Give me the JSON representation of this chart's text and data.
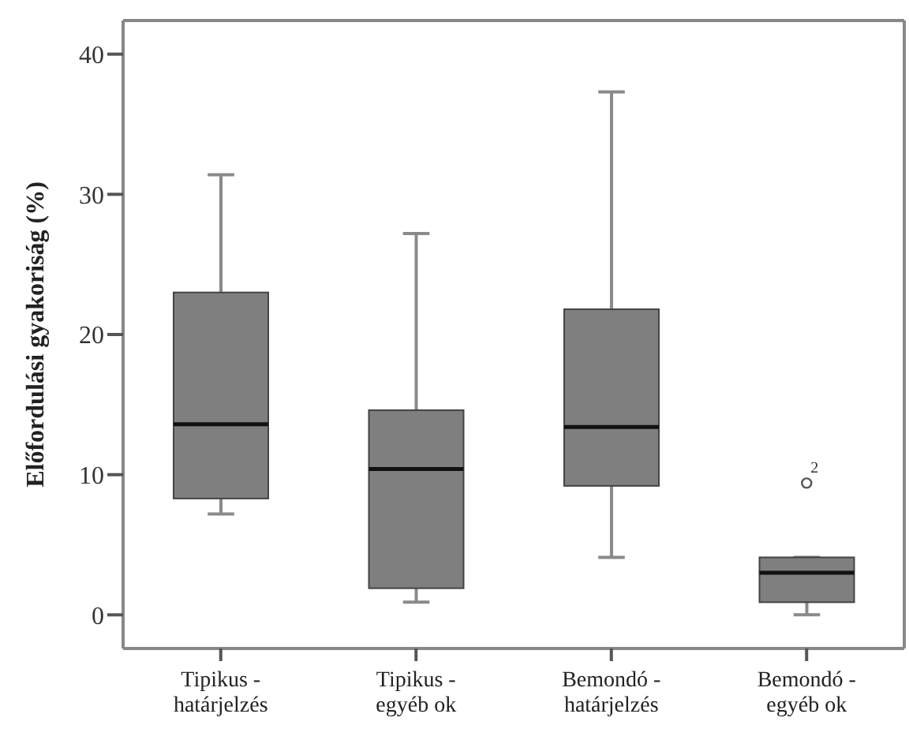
{
  "chart_data": {
    "type": "box",
    "ylabel": "Előfordulási gyakoriság (%)",
    "categories": [
      "Tipikus - határjelzés",
      "Tipikus - egyéb ok",
      "Bemondó - határjelzés",
      "Bemondó - egyéb ok"
    ],
    "boxes": [
      {
        "low": 7.2,
        "q1": 8.3,
        "median": 13.6,
        "q3": 23.0,
        "high": 31.4
      },
      {
        "low": 0.9,
        "q1": 1.9,
        "median": 10.4,
        "q3": 14.6,
        "high": 27.2
      },
      {
        "low": 4.1,
        "q1": 9.2,
        "median": 13.4,
        "q3": 21.8,
        "high": 37.3
      },
      {
        "low": 0,
        "q1": 0.9,
        "median": 3.0,
        "q3": 4.1,
        "high": 4.1,
        "outliers": [
          9.4
        ]
      }
    ],
    "color": "#7f7f7f",
    "annotations": [
      "2"
    ],
    "ylim": [
      -2.4,
      42.4
    ],
    "yticks": [
      0,
      10,
      20,
      30,
      40
    ]
  }
}
